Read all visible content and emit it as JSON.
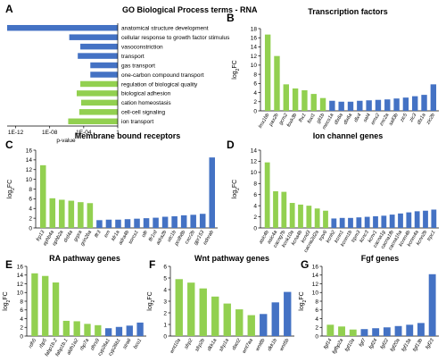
{
  "colors": {
    "green": "#92d050",
    "blue": "#4472c4"
  },
  "chart_data": [
    {
      "id": "A",
      "panel_label": "A",
      "type": "bar",
      "orientation": "horizontal",
      "title": "GO Biological Process terms - RNA",
      "xlabel": "p-value",
      "xscale": "log",
      "xlim": [
        1e-13,
        1
      ],
      "xticks": [
        "1E-12",
        "1E-08",
        "1E-04",
        "1"
      ],
      "categories": [
        "anatomical structure development",
        "cellular response to growth factor stimulus",
        "vasoconstriction",
        "transport",
        "gas transport",
        "one-carbon compound transport",
        "regulation of biological quality",
        "biological adhesion",
        "cation homeostasis",
        "cell-cell signaling",
        "ion transport"
      ],
      "values": [
        1e-13,
        2e-06,
        4e-05,
        2e-05,
        0.0006,
        0.0006,
        4e-05,
        1.5e-05,
        5e-05,
        3e-05,
        1.5e-06
      ],
      "colors": [
        "blue",
        "blue",
        "blue",
        "blue",
        "blue",
        "blue",
        "green",
        "green",
        "green",
        "green",
        "green"
      ]
    },
    {
      "id": "B",
      "panel_label": "B",
      "type": "bar",
      "title": "Transcription factors",
      "ylabel": "log2FC",
      "ylim": [
        0,
        18
      ],
      "yticks": [
        0,
        2,
        4,
        6,
        8,
        10,
        12,
        14,
        16,
        18
      ],
      "categories": [
        "lmx1bb",
        "pax2b",
        "gcm2",
        "foxk3b",
        "lhx1",
        "foxi1",
        "gli1b",
        "mecs1a",
        "dlx6a",
        "dlx6a",
        "dlx4",
        "sal4",
        "emx2",
        "znc2a",
        "sall3b",
        "zic5",
        "zic3",
        "dlx1a",
        "zic2b"
      ],
      "values": [
        16.7,
        12.0,
        5.8,
        4.9,
        4.5,
        3.7,
        2.8,
        2.2,
        2.0,
        2.0,
        2.2,
        2.3,
        2.4,
        2.5,
        2.7,
        2.9,
        3.2,
        3.5,
        5.8
      ],
      "colors": [
        "green",
        "green",
        "green",
        "green",
        "green",
        "green",
        "green",
        "blue",
        "blue",
        "blue",
        "blue",
        "blue",
        "blue",
        "blue",
        "blue",
        "blue",
        "blue",
        "blue",
        "blue"
      ]
    },
    {
      "id": "C",
      "panel_label": "C",
      "type": "bar",
      "title": "Membrane bound receptors",
      "ylabel": "log2FC",
      "ylim": [
        0,
        16
      ],
      "yticks": [
        0,
        2,
        4,
        6,
        8,
        10,
        12,
        14,
        16
      ],
      "categories": [
        "frp13",
        "ephb4a",
        "ephb2a",
        "drd4a",
        "grpra",
        "grin2ba",
        "ffr3",
        "ern",
        "kfr1a",
        "adra4b",
        "sorcs1",
        "olfr",
        "ffr1rd",
        "adra2b",
        "utc1b",
        "pcdh8b",
        "cxcr2b",
        "gpr153",
        "ednrab"
      ],
      "values": [
        12.9,
        6.1,
        5.8,
        5.6,
        5.3,
        5.1,
        1.6,
        1.7,
        1.7,
        1.8,
        1.9,
        2.0,
        2.1,
        2.3,
        2.4,
        2.6,
        2.7,
        2.9,
        14.5
      ],
      "colors": [
        "green",
        "green",
        "green",
        "green",
        "green",
        "green",
        "blue",
        "blue",
        "blue",
        "blue",
        "blue",
        "blue",
        "blue",
        "blue",
        "blue",
        "blue",
        "blue",
        "blue",
        "blue"
      ]
    },
    {
      "id": "D",
      "panel_label": "D",
      "type": "bar",
      "title": "Ion channel genes",
      "ylabel": "log2FC",
      "ylim": [
        0,
        14
      ],
      "yticks": [
        0,
        2,
        4,
        6,
        8,
        10,
        12,
        14
      ],
      "categories": [
        "asic4b",
        "asic4a",
        "cacng7b",
        "kcnk10a",
        "kcna4b",
        "kcnd3",
        "cacna2d2a",
        "trpv6",
        "kcnh2",
        "kcnn1",
        "kcnm1b",
        "trpm3",
        "kcnc3",
        "kcnv1",
        "cacna1g",
        "cacna1fb",
        "cacna1ha",
        "kcnm4b",
        "kcnm4a",
        "kcnn2b",
        "trpc1"
      ],
      "values": [
        11.8,
        6.6,
        6.5,
        4.5,
        4.2,
        4.0,
        3.5,
        3.1,
        1.7,
        1.8,
        1.8,
        1.9,
        2.0,
        2.1,
        2.2,
        2.4,
        2.6,
        2.8,
        3.0,
        3.1,
        3.3
      ],
      "colors": [
        "green",
        "green",
        "green",
        "green",
        "green",
        "green",
        "green",
        "green",
        "blue",
        "blue",
        "blue",
        "blue",
        "blue",
        "blue",
        "blue",
        "blue",
        "blue",
        "blue",
        "blue",
        "blue",
        "blue"
      ]
    },
    {
      "id": "E",
      "panel_label": "E",
      "type": "bar",
      "title": "RA pathway genes",
      "ylabel": "log2FC",
      "ylim": [
        0,
        16
      ],
      "yticks": [
        0,
        2,
        4,
        6,
        8,
        10,
        12,
        14,
        16
      ],
      "categories": [
        "rdh5",
        "rbp5",
        "fabp1b.2",
        "fabp1b.1",
        "aldh1a2",
        "rbp7a",
        "dhrs9",
        "cyp26a1",
        "cyp26b1",
        "stra6",
        "bco1"
      ],
      "values": [
        14.4,
        13.8,
        12.3,
        3.5,
        3.4,
        2.8,
        2.5,
        1.8,
        2.1,
        2.4,
        3.1
      ],
      "colors": [
        "green",
        "green",
        "green",
        "green",
        "green",
        "green",
        "green",
        "blue",
        "blue",
        "blue",
        "blue"
      ]
    },
    {
      "id": "F",
      "panel_label": "F",
      "type": "bar",
      "title": "Wnt pathway genes",
      "ylabel": "log2FC",
      "ylim": [
        0,
        6
      ],
      "yticks": [
        0,
        1,
        2,
        3,
        4,
        5,
        6
      ],
      "categories": [
        "wnt10a",
        "sfrp2",
        "sfrp2b",
        "dkk1a",
        "sfrp1a",
        "dact2",
        "wnt7aa",
        "wnt8b",
        "dkk1b",
        "wnt5b"
      ],
      "values": [
        4.9,
        4.6,
        4.1,
        3.4,
        2.8,
        2.3,
        1.8,
        1.9,
        2.9,
        3.8
      ],
      "colors": [
        "green",
        "green",
        "green",
        "green",
        "green",
        "green",
        "green",
        "blue",
        "blue",
        "blue"
      ]
    },
    {
      "id": "G",
      "panel_label": "G",
      "type": "bar",
      "title": "Fgf genes",
      "ylabel": "log2FC",
      "ylim": [
        0,
        16
      ],
      "yticks": [
        0,
        2,
        4,
        6,
        8,
        10,
        12,
        14,
        16
      ],
      "categories": [
        "fgf14",
        "fgfbp2a",
        "fgf10a",
        "fgf7",
        "fgf24",
        "fgf22",
        "fgf20a",
        "fgf13a",
        "fgf13b",
        "fgf23"
      ],
      "values": [
        2.6,
        2.2,
        1.5,
        1.6,
        1.8,
        2.0,
        2.3,
        2.6,
        3.0,
        14.2
      ],
      "colors": [
        "green",
        "green",
        "green",
        "blue",
        "blue",
        "blue",
        "blue",
        "blue",
        "blue",
        "blue"
      ]
    }
  ]
}
